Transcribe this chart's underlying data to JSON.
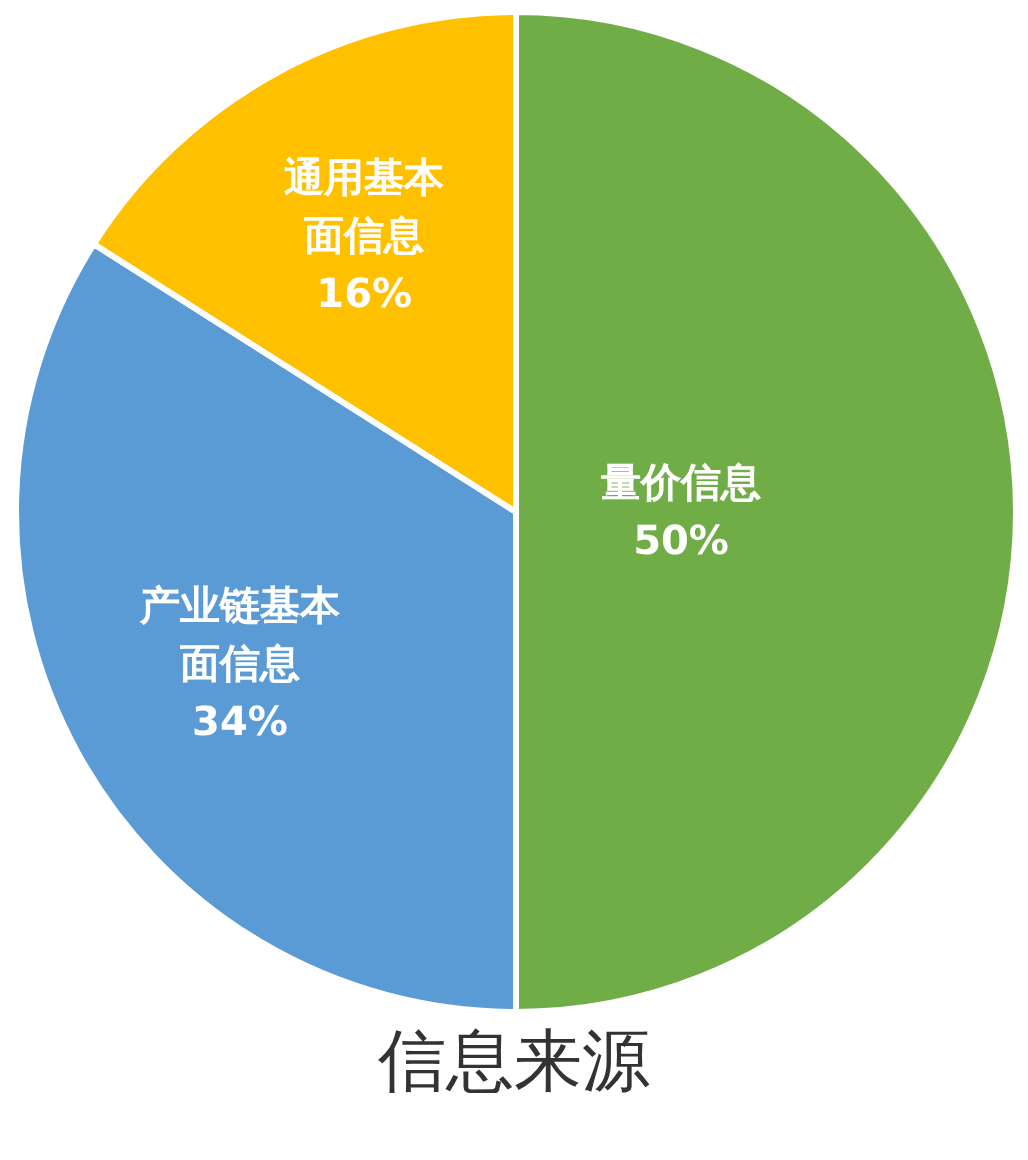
{
  "chart_data": {
    "type": "pie",
    "title": "信息来源",
    "categories": [
      "量价信息",
      "产业链基本面信息",
      "通用基本面信息"
    ],
    "values": [
      50,
      34,
      16
    ],
    "colors": [
      "#70ad47",
      "#5b9bd5",
      "#ffc000"
    ],
    "value_labels": [
      "50%",
      "34%",
      "16%"
    ]
  }
}
